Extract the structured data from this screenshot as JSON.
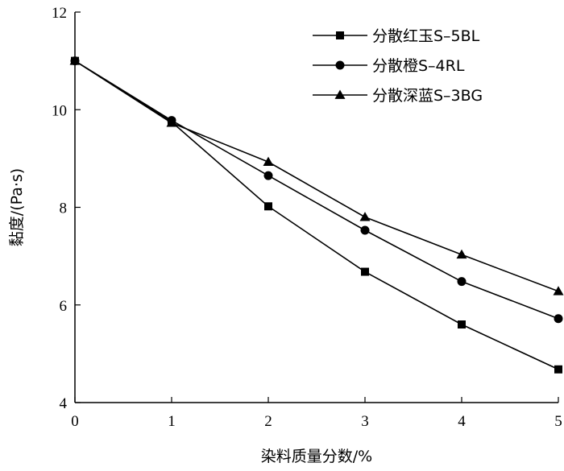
{
  "chart_data": {
    "type": "line",
    "xlabel": "染料质量分数/%",
    "ylabel": "黏度/(Pa·s)",
    "xlim": [
      0,
      5
    ],
    "ylim": [
      4,
      12
    ],
    "xticks": [
      0,
      1,
      2,
      3,
      4,
      5
    ],
    "yticks": [
      4,
      6,
      8,
      10,
      12
    ],
    "grid": false,
    "legend_position": "top-right",
    "x": [
      0,
      1,
      2,
      3,
      4,
      5
    ],
    "series": [
      {
        "name": "分散红玉S–5BL",
        "marker": "square",
        "values": [
          11.0,
          9.75,
          8.02,
          6.68,
          5.6,
          4.68
        ]
      },
      {
        "name": "分散橙S–4RL",
        "marker": "circle",
        "values": [
          11.0,
          9.78,
          8.65,
          7.53,
          6.48,
          5.72
        ]
      },
      {
        "name": "分散深蓝S–3BG",
        "marker": "triangle",
        "values": [
          11.0,
          9.73,
          8.93,
          7.8,
          7.03,
          6.28
        ]
      }
    ]
  }
}
